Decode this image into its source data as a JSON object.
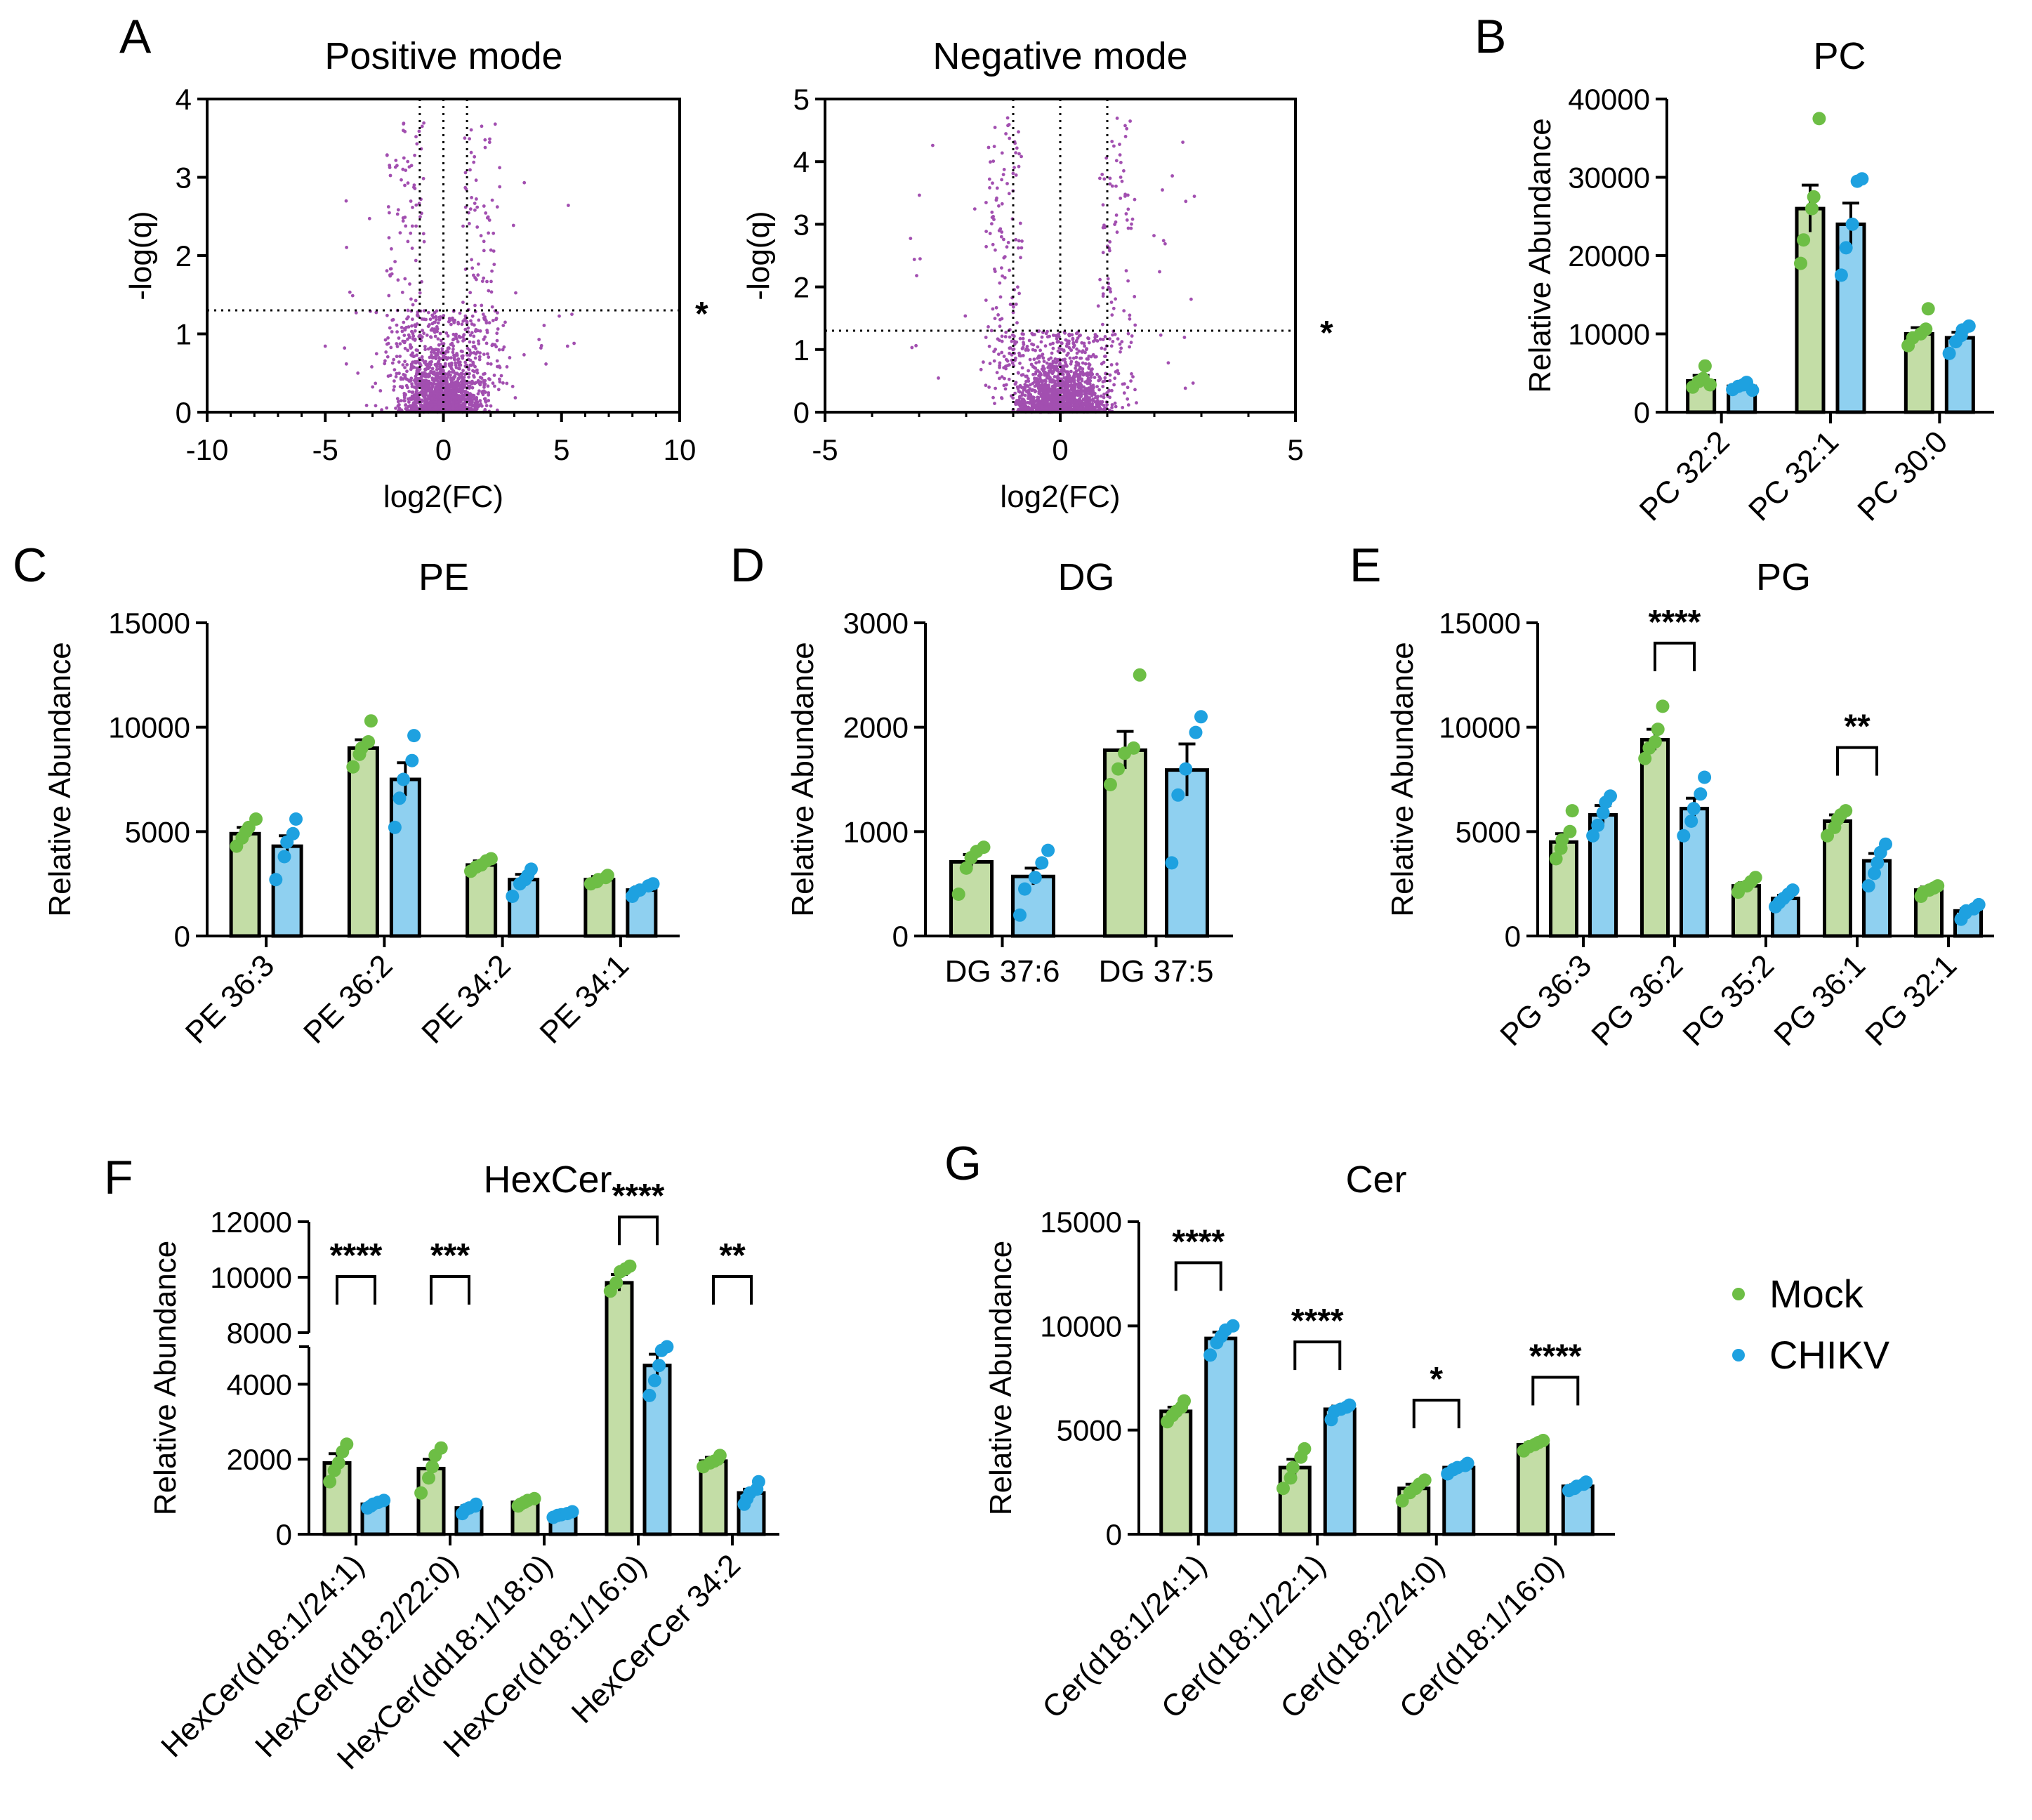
{
  "colors": {
    "mock_fill": "#C3DDA6",
    "mock_dot": "#6DBE45",
    "chikv_fill": "#8FD0F0",
    "chikv_dot": "#1EA1E0",
    "volcano": "#A24FB0"
  },
  "legend": {
    "items": [
      {
        "name": "Mock",
        "color": "#6DBE45"
      },
      {
        "name": "CHIKV",
        "color": "#1EA1E0"
      }
    ]
  },
  "chart_data": [
    {
      "id": "A1",
      "panel": "A",
      "type": "scatter",
      "title": "Positive mode",
      "xlabel": "log2(FC)",
      "ylabel": "-log(q)",
      "xlim": [
        -10,
        10
      ],
      "ylim": [
        0,
        4
      ],
      "xticks": [
        "-10",
        "-5",
        "0",
        "5",
        "10"
      ],
      "yticks": [
        "0",
        "1",
        "2",
        "3",
        "4"
      ],
      "vlines": [
        -1,
        0,
        1
      ],
      "hline": 1.3,
      "hline_label": "*",
      "n_points": 1800
    },
    {
      "id": "A2",
      "type": "scatter",
      "title": "Negative mode",
      "xlabel": "log2(FC)",
      "ylabel": "-log(q)",
      "xlim": [
        -5,
        5
      ],
      "ylim": [
        0,
        5
      ],
      "xticks": [
        "-5",
        "0",
        "5"
      ],
      "yticks": [
        "0",
        "1",
        "2",
        "3",
        "4",
        "5"
      ],
      "vlines": [
        -1,
        0,
        1
      ],
      "hline": 1.3,
      "hline_label": "*",
      "n_points": 1800
    },
    {
      "id": "B",
      "panel": "B",
      "type": "bar",
      "title": "PC",
      "ylabel": "Relative Abundance",
      "ylim": [
        0,
        40000
      ],
      "yticks": [
        "0",
        "10000",
        "20000",
        "30000",
        "40000"
      ],
      "categories": [
        "PC 32:2",
        "PC 32:1",
        "PC 30:0"
      ],
      "series": [
        {
          "name": "Mock",
          "values": [
            4000,
            26000,
            10000
          ],
          "errors": [
            700,
            3000,
            800
          ],
          "points": [
            [
              3200,
              3900,
              4300,
              5900,
              3500
            ],
            [
              19000,
              22000,
              26000,
              27500,
              37500
            ],
            [
              8500,
              9500,
              10000,
              10600,
              13200
            ]
          ]
        },
        {
          "name": "CHIKV",
          "values": [
            3300,
            24000,
            9500
          ],
          "errors": [
            400,
            2700,
            700
          ],
          "points": [
            [
              2900,
              3300,
              3500,
              3800,
              2800
            ],
            [
              17500,
              21000,
              24000,
              29500,
              29800
            ],
            [
              7500,
              9000,
              9800,
              10500,
              11000
            ]
          ]
        }
      ],
      "significance": []
    },
    {
      "id": "C",
      "panel": "C",
      "type": "bar",
      "title": "PE",
      "ylabel": "Relative Abundance",
      "ylim": [
        0,
        15000
      ],
      "yticks": [
        "0",
        "5000",
        "10000",
        "15000"
      ],
      "categories": [
        "PE 36:3",
        "PE 36:2",
        "PE 34:2",
        "PE 34:1"
      ],
      "series": [
        {
          "name": "Mock",
          "values": [
            4900,
            9000,
            3400,
            2700
          ],
          "errors": [
            300,
            400,
            200,
            150
          ],
          "points": [
            [
              4300,
              4700,
              5000,
              5200,
              5600
            ],
            [
              8100,
              8700,
              9000,
              9300,
              10300
            ],
            [
              3100,
              3300,
              3400,
              3600,
              3700
            ],
            [
              2500,
              2600,
              2700,
              2800,
              2900
            ]
          ]
        },
        {
          "name": "CHIKV",
          "values": [
            4300,
            7500,
            2700,
            2200
          ],
          "errors": [
            500,
            800,
            250,
            150
          ],
          "points": [
            [
              2700,
              3800,
              4500,
              4900,
              5600
            ],
            [
              5200,
              6600,
              7500,
              8400,
              9600
            ],
            [
              1900,
              2500,
              2700,
              2900,
              3200
            ],
            [
              1900,
              2100,
              2200,
              2400,
              2500
            ]
          ]
        }
      ],
      "significance": []
    },
    {
      "id": "D",
      "panel": "D",
      "type": "bar",
      "title": "DG",
      "ylabel": "Relative Abundance",
      "ylim": [
        0,
        3000
      ],
      "yticks": [
        "0",
        "1000",
        "2000",
        "3000"
      ],
      "categories": [
        "DG 37:6",
        "DG 37:5"
      ],
      "series": [
        {
          "name": "Mock",
          "values": [
            710,
            1780
          ],
          "errors": [
            70,
            180
          ],
          "points": [
            [
              400,
              650,
              750,
              810,
              850
            ],
            [
              1450,
              1600,
              1750,
              1800,
              2500
            ]
          ]
        },
        {
          "name": "CHIKV",
          "values": [
            570,
            1590
          ],
          "errors": [
            80,
            250
          ],
          "points": [
            [
              200,
              450,
              560,
              700,
              820
            ],
            [
              700,
              1350,
              1600,
              1950,
              2100
            ]
          ]
        }
      ],
      "significance": []
    },
    {
      "id": "E",
      "panel": "E",
      "type": "bar",
      "title": "PG",
      "ylabel": "Relative Abundance",
      "ylim": [
        0,
        15000
      ],
      "yticks": [
        "0",
        "5000",
        "10000",
        "15000"
      ],
      "categories": [
        "PG 36:3",
        "PG 36:2",
        "PG 35:2",
        "PG 36:1",
        "PG 32:1"
      ],
      "series": [
        {
          "name": "Mock",
          "values": [
            4500,
            9400,
            2400,
            5500,
            2200
          ],
          "errors": [
            400,
            500,
            150,
            300,
            150
          ],
          "points": [
            [
              3700,
              4200,
              4600,
              5000,
              6000
            ],
            [
              8500,
              9000,
              9300,
              9900,
              11000
            ],
            [
              2100,
              2300,
              2400,
              2600,
              2800
            ],
            [
              4800,
              5200,
              5600,
              5800,
              6000
            ],
            [
              1900,
              2100,
              2200,
              2300,
              2400
            ]
          ]
        },
        {
          "name": "CHIKV",
          "values": [
            5800,
            6100,
            1800,
            3600,
            1200
          ],
          "errors": [
            450,
            500,
            150,
            350,
            100
          ],
          "points": [
            [
              4800,
              5300,
              5900,
              6400,
              6700
            ],
            [
              4800,
              5500,
              6100,
              6800,
              7600
            ],
            [
              1400,
              1600,
              1800,
              2000,
              2200
            ],
            [
              2400,
              3000,
              3500,
              4000,
              4400
            ],
            [
              800,
              1100,
              1200,
              1300,
              1500
            ]
          ]
        }
      ],
      "significance": [
        {
          "category": 1,
          "label": "****"
        },
        {
          "category": 3,
          "label": "**"
        }
      ]
    },
    {
      "id": "F",
      "panel": "F",
      "type": "bar",
      "title": "HexCer",
      "ylabel": "Relative Abundance",
      "ylim": [
        0,
        12000
      ],
      "axis_break": [
        5000,
        8000
      ],
      "yticks": [
        "0",
        "2000",
        "4000",
        "8000",
        "10000",
        "12000"
      ],
      "categories": [
        "HexCer(d18:1/24:1)",
        "HexCer(d18:2/22:0)",
        "HexCer(dd18:1/18:0)",
        "HexCer(d18:1/16:0)",
        "HexCerCer 34:2"
      ],
      "series": [
        {
          "name": "Mock",
          "values": [
            1900,
            1750,
            850,
            9800,
            1950
          ],
          "errors": [
            250,
            250,
            60,
            300,
            100
          ],
          "points": [
            [
              1400,
              1700,
              1900,
              2200,
              2400
            ],
            [
              1100,
              1500,
              1800,
              2100,
              2300
            ],
            [
              750,
              800,
              850,
              900,
              950
            ],
            [
              9500,
              9800,
              10200,
              10300,
              10400
            ],
            [
              1800,
              1900,
              1950,
              2000,
              2100
            ]
          ]
        },
        {
          "name": "CHIKV",
          "values": [
            800,
            700,
            520,
            4500,
            1100
          ],
          "errors": [
            50,
            60,
            30,
            300,
            100
          ],
          "points": [
            [
              700,
              750,
              800,
              850,
              900
            ],
            [
              550,
              650,
              700,
              750,
              800
            ],
            [
              450,
              500,
              520,
              550,
              600
            ],
            [
              3700,
              4100,
              4500,
              4900,
              5000
            ],
            [
              800,
              950,
              1100,
              1200,
              1400
            ]
          ]
        }
      ],
      "significance": [
        {
          "category": 0,
          "label": "****"
        },
        {
          "category": 1,
          "label": "***"
        },
        {
          "category": 3,
          "label": "****"
        },
        {
          "category": 4,
          "label": "**"
        }
      ]
    },
    {
      "id": "G",
      "panel": "G",
      "type": "bar",
      "title": "Cer",
      "ylabel": "Relative Abundance",
      "ylim": [
        0,
        15000
      ],
      "yticks": [
        "0",
        "5000",
        "10000",
        "15000"
      ],
      "categories": [
        "Cer(d18:1/24:1)",
        "Cer(d18:1/22:1)",
        "Cer(d18:2/24:0)",
        "Cer(d18:1/16:0)"
      ],
      "series": [
        {
          "name": "Mock",
          "values": [
            5900,
            3200,
            2200,
            4300
          ],
          "errors": [
            200,
            400,
            200,
            100
          ],
          "points": [
            [
              5400,
              5700,
              5900,
              6100,
              6400
            ],
            [
              2200,
              2700,
              3200,
              3700,
              4100
            ],
            [
              1600,
              2000,
              2200,
              2400,
              2600
            ],
            [
              4000,
              4200,
              4300,
              4400,
              4500
            ]
          ]
        },
        {
          "name": "CHIKV",
          "values": [
            9400,
            6000,
            3200,
            2300
          ],
          "errors": [
            300,
            150,
            100,
            80
          ],
          "points": [
            [
              8600,
              9200,
              9500,
              9800,
              10000
            ],
            [
              5500,
              5900,
              6000,
              6100,
              6200
            ],
            [
              2900,
              3100,
              3200,
              3300,
              3400
            ],
            [
              2100,
              2200,
              2300,
              2400,
              2500
            ]
          ]
        }
      ],
      "significance": [
        {
          "category": 0,
          "label": "****"
        },
        {
          "category": 1,
          "label": "****"
        },
        {
          "category": 2,
          "label": "*"
        },
        {
          "category": 3,
          "label": "****"
        }
      ]
    }
  ]
}
